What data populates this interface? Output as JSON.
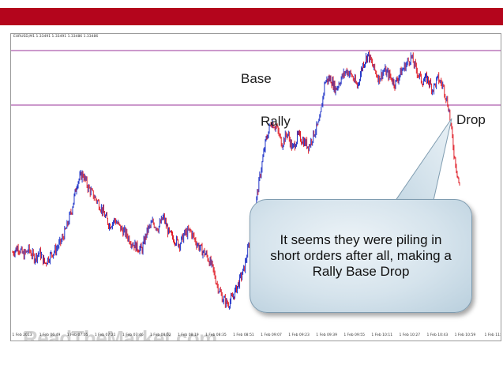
{
  "chart_data": {
    "type": "candlestick",
    "header": "EURUSD,M1 1.33491 1.33491 1.33486 1.33486",
    "x_tick_labels": [
      "1 Feb 2013",
      "1 Feb 06:49",
      "1 Feb 07:05",
      "1 Feb 07:21",
      "1 Feb 07:46",
      "1 Feb 08:02",
      "1 Feb 08:19",
      "1 Feb 08:35",
      "1 Feb 08:51",
      "1 Feb 09:07",
      "1 Feb 09:23",
      "1 Feb 09:39",
      "1 Feb 09:55",
      "1 Feb 10:11",
      "1 Feb 10:27",
      "1 Feb 10:43",
      "1 Feb 10:59",
      "1 Feb 11:"
    ],
    "bull_color": "#1f33c8",
    "bear_color": "#e0202a",
    "level_line_color": "#993399",
    "close_path": [
      0.26,
      0.28,
      0.25,
      0.27,
      0.24,
      0.26,
      0.22,
      0.25,
      0.27,
      0.3,
      0.35,
      0.42,
      0.52,
      0.55,
      0.5,
      0.47,
      0.44,
      0.4,
      0.36,
      0.38,
      0.35,
      0.33,
      0.3,
      0.28,
      0.27,
      0.34,
      0.37,
      0.35,
      0.39,
      0.33,
      0.31,
      0.29,
      0.33,
      0.34,
      0.3,
      0.27,
      0.25,
      0.21,
      0.14,
      0.09,
      0.07,
      0.1,
      0.15,
      0.2,
      0.3,
      0.42,
      0.55,
      0.67,
      0.74,
      0.72,
      0.66,
      0.7,
      0.64,
      0.69,
      0.67,
      0.65,
      0.7,
      0.74,
      0.89,
      0.9,
      0.86,
      0.9,
      0.93,
      0.91,
      0.87,
      0.95,
      0.99,
      0.94,
      0.9,
      0.93,
      0.91,
      0.88,
      0.92,
      0.95,
      0.98,
      0.93,
      0.89,
      0.9,
      0.86,
      0.9,
      0.87,
      0.79,
      0.62,
      0.5
    ],
    "annotations": {
      "base": "Base",
      "rally": "Rally",
      "drop": "Drop"
    },
    "watermark": "ReadTheMarket.com",
    "callout": "It seems they were piling in short orders after all, making a Rally Base Drop"
  }
}
